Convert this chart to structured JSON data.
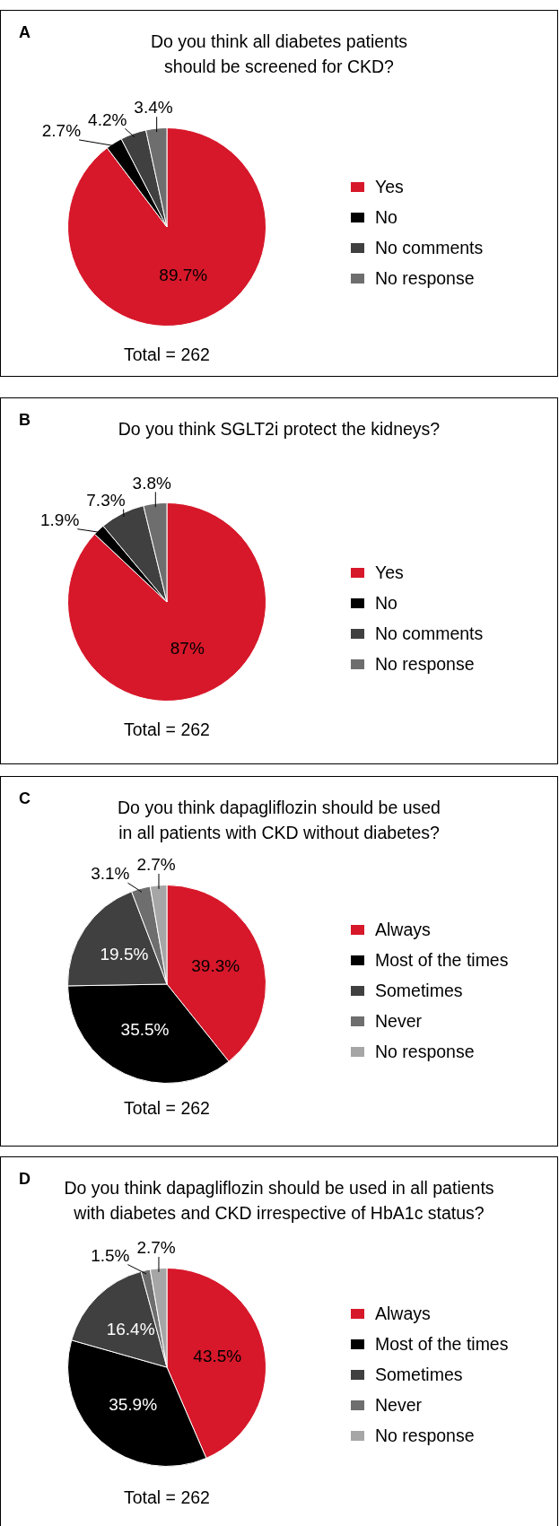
{
  "chart_data": [
    {
      "type": "pie",
      "title": "Do you think all diabetes patients should be screened for CKD?",
      "categories": [
        "Yes",
        "No",
        "No comments",
        "No response"
      ],
      "values": [
        89.7,
        2.7,
        4.2,
        3.4
      ],
      "colors": [
        "#d7182a",
        "#000000",
        "#404040",
        "#6e6e6e"
      ],
      "value_labels": [
        "89.7%",
        "2.7%",
        "4.2%",
        "3.4%"
      ],
      "legend": "right",
      "annotations": [
        "A",
        "Total = 262"
      ]
    },
    {
      "type": "pie",
      "title": "Do you think SGLT2i protect the kidneys?",
      "categories": [
        "Yes",
        "No",
        "No comments",
        "No response"
      ],
      "values": [
        87,
        1.9,
        7.3,
        3.8
      ],
      "colors": [
        "#d7182a",
        "#000000",
        "#404040",
        "#6e6e6e"
      ],
      "value_labels": [
        "87%",
        "1.9%",
        "7.3%",
        "3.8%"
      ],
      "legend": "right",
      "annotations": [
        "B",
        "Total = 262"
      ]
    },
    {
      "type": "pie",
      "title": "Do you think dapagliflozin should be used in all patients with CKD without diabetes?",
      "categories": [
        "Always",
        "Most of the times",
        "Sometimes",
        "Never",
        "No response"
      ],
      "values": [
        39.3,
        35.5,
        19.5,
        3.1,
        2.7
      ],
      "colors": [
        "#d7182a",
        "#000000",
        "#404040",
        "#6e6e6e",
        "#a6a6a6"
      ],
      "value_labels": [
        "39.3%",
        "35.5%",
        "19.5%",
        "3.1%",
        "2.7%"
      ],
      "legend": "right",
      "annotations": [
        "C",
        "Total = 262"
      ]
    },
    {
      "type": "pie",
      "title": "Do you think dapagliflozin should be used in all patients with diabetes and CKD irrespective of HbA1c status?",
      "categories": [
        "Always",
        "Most of the times",
        "Sometimes",
        "Never",
        "No response"
      ],
      "values": [
        43.5,
        35.9,
        16.4,
        1.5,
        2.7
      ],
      "colors": [
        "#d7182a",
        "#000000",
        "#404040",
        "#6e6e6e",
        "#a6a6a6"
      ],
      "value_labels": [
        "43.5%",
        "35.9%",
        "16.4%",
        "1.5%",
        "2.7%"
      ],
      "legend": "right",
      "annotations": [
        "D",
        "Total = 262"
      ]
    }
  ]
}
